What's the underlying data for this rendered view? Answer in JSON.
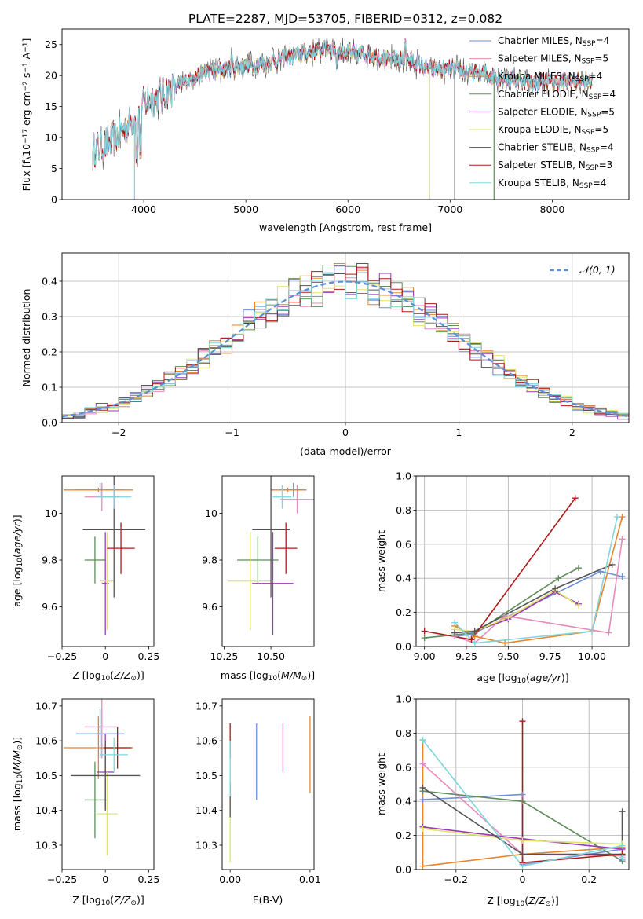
{
  "figure_title": "PLATE=2287, MJD=53705, FIBERID=0312, z=0.082",
  "colors": {
    "Chabrier MILES": "#6b8fd9",
    "Salpeter MILES": "#e48bbd",
    "Kroupa MILES": "#e8842a",
    "Chabrier ELODIE": "#5e8c5a",
    "Salpeter ELODIE": "#9a3ab8",
    "Kroupa ELODIE": "#dfe56b",
    "Chabrier STELIB": "#555555",
    "Salpeter STELIB": "#b01818",
    "Kroupa STELIB": "#7fd6dc",
    "normal": "#5b8ed6"
  },
  "chart_data": [
    {
      "id": "spectrum",
      "type": "line",
      "title": "PLATE=2287, MJD=53705, FIBERID=0312, z=0.082",
      "xlabel": "wavelength [Angstrom, rest frame]",
      "ylabel": "Flux [fλ10⁻¹⁷ erg cm⁻² s⁻¹ A⁻¹]",
      "xlim": [
        3200,
        8750
      ],
      "ylim": [
        0,
        27.5
      ],
      "xticks": [
        4000,
        5000,
        6000,
        7000,
        8000
      ],
      "yticks": [
        0,
        5,
        10,
        15,
        20,
        25
      ],
      "grid": false,
      "legend_position": "right",
      "series_styles": [
        "Chabrier MILES, N",
        "Salpeter MILES, N",
        "Kroupa MILES, N",
        "Chabrier ELODIE, N",
        "Salpeter ELODIE, N",
        "Kroupa ELODIE, N",
        "Chabrier STELIB, N",
        "Salpeter STELIB, N",
        "Kroupa STELIB, N"
      ],
      "legend": [
        {
          "base": "Chabrier MILES",
          "sub": "SSP",
          "suffix": "=4"
        },
        {
          "base": "Salpeter MILES",
          "sub": "SSP",
          "suffix": "=5"
        },
        {
          "base": "Kroupa MILES",
          "sub": "SSP",
          "suffix": "=4"
        },
        {
          "base": "Chabrier ELODIE",
          "sub": "SSP",
          "suffix": "=4"
        },
        {
          "base": "Salpeter ELODIE",
          "sub": "SSP",
          "suffix": "=5"
        },
        {
          "base": "Kroupa ELODIE",
          "sub": "SSP",
          "suffix": "=5"
        },
        {
          "base": "Chabrier STELIB",
          "sub": "SSP",
          "suffix": "=4"
        },
        {
          "base": "Salpeter STELIB",
          "sub": "SSP",
          "suffix": "=3"
        },
        {
          "base": "Kroupa STELIB",
          "sub": "SSP",
          "suffix": "=4"
        }
      ],
      "data_envelope": {
        "x": [
          3500,
          3700,
          3900,
          4000,
          4200,
          4400,
          4600,
          4800,
          5000,
          5200,
          5400,
          5600,
          5800,
          6000,
          6200,
          6400,
          6600,
          6800,
          7000,
          7200,
          7400,
          7600,
          7800,
          8000,
          8200,
          8400
        ],
        "y": [
          8.0,
          9.5,
          13.0,
          15.5,
          17.0,
          19.0,
          20.5,
          21.0,
          21.5,
          22.0,
          23.0,
          23.5,
          24.5,
          23.5,
          23.5,
          22.5,
          22.5,
          21.0,
          21.0,
          20.5,
          20.0,
          19.5,
          19.0,
          19.0,
          19.0,
          19.0
        ]
      }
    },
    {
      "id": "residuals",
      "type": "histogram",
      "xlabel": "(data-model)/error",
      "ylabel": "Normed distribution",
      "xlim": [
        -2.5,
        2.5
      ],
      "ylim": [
        0,
        0.48
      ],
      "xticks": [
        -2,
        -1,
        0,
        1,
        2
      ],
      "yticks": [
        0.0,
        0.1,
        0.2,
        0.3,
        0.4
      ],
      "grid": true,
      "legend_position": "upper right",
      "legend": [
        "𝒩(0, 1)"
      ],
      "bin_width": 0.1
    },
    {
      "id": "age_vs_Z",
      "type": "scatter",
      "xlabel": "Z [log₁₀(Z/Z⊙)]",
      "ylabel": "age  [log₁₀(age/yr)]",
      "xlim": [
        -0.25,
        0.28
      ],
      "ylim": [
        9.43,
        10.16
      ],
      "xticks": [
        -0.25,
        0.0,
        0.25
      ],
      "yticks": [
        9.6,
        9.8,
        10.0
      ],
      "points": [
        {
          "model": "Chabrier MILES",
          "x": -0.03,
          "xerr": 0.14,
          "y": 10.1,
          "yerr": 0.03
        },
        {
          "model": "Salpeter MILES",
          "x": -0.02,
          "xerr": 0.1,
          "y": 10.07,
          "yerr": 0.06
        },
        {
          "model": "Kroupa MILES",
          "x": -0.04,
          "xerr": 0.2,
          "y": 10.1,
          "yerr": 0.01
        },
        {
          "model": "Chabrier ELODIE",
          "x": -0.06,
          "xerr": 0.06,
          "y": 9.8,
          "yerr": 0.1
        },
        {
          "model": "Salpeter ELODIE",
          "x": 0.0,
          "xerr": 0.02,
          "y": 9.7,
          "yerr": 0.22
        },
        {
          "model": "Kroupa ELODIE",
          "x": 0.01,
          "xerr": 0.04,
          "y": 9.71,
          "yerr": 0.21
        },
        {
          "model": "Chabrier STELIB",
          "x": 0.05,
          "xerr": 0.18,
          "y": 9.93,
          "yerr": 0.29
        },
        {
          "model": "Salpeter STELIB",
          "x": 0.09,
          "xerr": 0.08,
          "y": 9.85,
          "yerr": 0.11
        },
        {
          "model": "Kroupa STELIB",
          "x": 0.05,
          "xerr": 0.1,
          "y": 10.07,
          "yerr": 0.05
        }
      ]
    },
    {
      "id": "age_vs_mass",
      "type": "scatter",
      "xlabel": "mass [log₁₀(M/M⊙)]",
      "ylabel": "",
      "xlim": [
        10.24,
        10.73
      ],
      "ylim": [
        9.43,
        10.16
      ],
      "xticks": [
        10.25,
        10.5
      ],
      "xtick_labels": [
        "10.25",
        "10.50"
      ],
      "yticks": [
        9.6,
        9.8,
        10.0
      ],
      "points": [
        {
          "model": "Chabrier MILES",
          "x": 10.62,
          "xerr": 0.07,
          "y": 10.1,
          "yerr": 0.03
        },
        {
          "model": "Salpeter MILES",
          "x": 10.64,
          "xerr": 0.09,
          "y": 10.06,
          "yerr": 0.06
        },
        {
          "model": "Kroupa MILES",
          "x": 10.59,
          "xerr": 0.09,
          "y": 10.1,
          "yerr": 0.01
        },
        {
          "model": "Chabrier ELODIE",
          "x": 10.43,
          "xerr": 0.11,
          "y": 9.8,
          "yerr": 0.1
        },
        {
          "model": "Salpeter ELODIE",
          "x": 10.51,
          "xerr": 0.11,
          "y": 9.7,
          "yerr": 0.22
        },
        {
          "model": "Kroupa ELODIE",
          "x": 10.39,
          "xerr": 0.12,
          "y": 9.71,
          "yerr": 0.21
        },
        {
          "model": "Chabrier STELIB",
          "x": 10.5,
          "xerr": 0.1,
          "y": 9.93,
          "yerr": 0.29
        },
        {
          "model": "Salpeter STELIB",
          "x": 10.58,
          "xerr": 0.06,
          "y": 9.85,
          "yerr": 0.11
        },
        {
          "model": "Kroupa STELIB",
          "x": 10.56,
          "xerr": 0.05,
          "y": 10.07,
          "yerr": 0.05
        }
      ]
    },
    {
      "id": "weights_vs_age",
      "type": "line",
      "xlabel": "age  [log₁₀(age/yr)]",
      "ylabel": "mass weight",
      "xlim": [
        8.95,
        10.22
      ],
      "ylim": [
        0,
        1
      ],
      "xticks": [
        9.0,
        9.25,
        9.5,
        9.75,
        10.0
      ],
      "xtick_labels": [
        "9.00",
        "9.25",
        "9.50",
        "9.75",
        "10.00"
      ],
      "yticks": [
        0.0,
        0.2,
        0.4,
        0.6,
        0.8,
        1.0
      ],
      "grid": true,
      "series": [
        {
          "model": "Chabrier MILES",
          "x": [
            9.18,
            9.28,
            10.05,
            10.18
          ],
          "y": [
            0.06,
            0.07,
            0.44,
            0.41
          ]
        },
        {
          "model": "Salpeter MILES",
          "x": [
            9.18,
            9.3,
            9.48,
            10.1,
            10.18
          ],
          "y": [
            0.06,
            0.02,
            0.18,
            0.08,
            0.63
          ]
        },
        {
          "model": "Kroupa MILES",
          "x": [
            9.18,
            9.3,
            9.48,
            10.0,
            10.18
          ],
          "y": [
            0.12,
            0.06,
            0.02,
            0.09,
            0.76
          ]
        },
        {
          "model": "Chabrier ELODIE",
          "x": [
            9.0,
            9.3,
            9.8,
            9.92
          ],
          "y": [
            0.05,
            0.08,
            0.4,
            0.46
          ]
        },
        {
          "model": "Salpeter ELODIE",
          "x": [
            9.18,
            9.3,
            9.5,
            9.78,
            9.92
          ],
          "y": [
            0.08,
            0.09,
            0.16,
            0.32,
            0.25
          ]
        },
        {
          "model": "Kroupa ELODIE",
          "x": [
            9.18,
            9.3,
            9.5,
            9.78,
            9.92
          ],
          "y": [
            0.1,
            0.09,
            0.17,
            0.33,
            0.24
          ]
        },
        {
          "model": "Chabrier STELIB",
          "x": [
            9.18,
            9.3,
            9.78,
            10.12
          ],
          "y": [
            0.08,
            0.09,
            0.34,
            0.48
          ]
        },
        {
          "model": "Salpeter STELIB",
          "x": [
            9.0,
            9.28,
            9.9
          ],
          "y": [
            0.09,
            0.04,
            0.87
          ]
        },
        {
          "model": "Kroupa STELIB",
          "x": [
            9.18,
            9.3,
            10.0,
            10.15
          ],
          "y": [
            0.14,
            0.02,
            0.09,
            0.76
          ]
        }
      ]
    },
    {
      "id": "mass_vs_Z",
      "type": "scatter",
      "xlabel": "Z [log₁₀(Z/Z⊙)]",
      "ylabel": "mass [log₁₀(M/M⊙)]",
      "xlim": [
        -0.25,
        0.28
      ],
      "ylim": [
        10.23,
        10.72
      ],
      "xticks": [
        -0.25,
        0.0,
        0.25
      ],
      "yticks": [
        10.3,
        10.4,
        10.5,
        10.6,
        10.7
      ],
      "points": [
        {
          "model": "Chabrier MILES",
          "x": -0.03,
          "xerr": 0.14,
          "y": 10.62,
          "yerr": 0.07
        },
        {
          "model": "Salpeter MILES",
          "x": -0.02,
          "xerr": 0.1,
          "y": 10.64,
          "yerr": 0.09
        },
        {
          "model": "Kroupa MILES",
          "x": -0.04,
          "xerr": 0.2,
          "y": 10.58,
          "yerr": 0.09
        },
        {
          "model": "Chabrier ELODIE",
          "x": -0.06,
          "xerr": 0.06,
          "y": 10.43,
          "yerr": 0.11
        },
        {
          "model": "Salpeter ELODIE",
          "x": 0.0,
          "xerr": 0.05,
          "y": 10.51,
          "yerr": 0.11
        },
        {
          "model": "Kroupa ELODIE",
          "x": 0.01,
          "xerr": 0.06,
          "y": 10.39,
          "yerr": 0.12
        },
        {
          "model": "Chabrier STELIB",
          "x": 0.0,
          "xerr": 0.2,
          "y": 10.5,
          "yerr": 0.1
        },
        {
          "model": "Salpeter STELIB",
          "x": 0.07,
          "xerr": 0.08,
          "y": 10.58,
          "yerr": 0.06
        },
        {
          "model": "Kroupa STELIB",
          "x": 0.05,
          "xerr": 0.08,
          "y": 10.56,
          "yerr": 0.05
        }
      ]
    },
    {
      "id": "mass_vs_ebv",
      "type": "scatter",
      "xlabel": "E(B-V)",
      "ylabel": "",
      "xlim": [
        -0.001,
        0.0105
      ],
      "ylim": [
        10.23,
        10.72
      ],
      "xticks": [
        0.0,
        0.01
      ],
      "xtick_labels": [
        "0.00",
        "0.01"
      ],
      "yticks": [
        10.3,
        10.4,
        10.5,
        10.6,
        10.7
      ],
      "points": [
        {
          "model": "Chabrier MILES",
          "x": 0.0033,
          "y": 10.54,
          "yerr": 0.11
        },
        {
          "model": "Salpeter MILES",
          "x": 0.0066,
          "y": 10.58,
          "yerr": 0.07
        },
        {
          "model": "Kroupa MILES",
          "x": 0.01,
          "y": 10.56,
          "yerr": 0.11
        },
        {
          "model": "Kroupa ELODIE",
          "x": 0.0,
          "y": 10.38,
          "yerr": 0.13
        },
        {
          "model": "Chabrier STELIB",
          "x": 0.0,
          "y": 10.43,
          "yerr": 0.05
        },
        {
          "model": "Salpeter STELIB",
          "x": 0.0,
          "y": 10.6,
          "yerr": 0.05
        },
        {
          "model": "Kroupa STELIB",
          "x": 0.0,
          "y": 10.52,
          "yerr": 0.08
        }
      ]
    },
    {
      "id": "weights_vs_Z",
      "type": "line",
      "xlabel": "Z [log₁₀(Z/Z⊙)]",
      "ylabel": "mass weight",
      "xlim": [
        -0.32,
        0.32
      ],
      "ylim": [
        0,
        1
      ],
      "xticks": [
        -0.2,
        0.0,
        0.2
      ],
      "yticks": [
        0.0,
        0.2,
        0.4,
        0.6,
        0.8,
        1.0
      ],
      "grid": true,
      "series": [
        {
          "model": "Chabrier MILES",
          "x": [
            -0.3,
            0.0,
            0.0,
            0.3,
            0.3
          ],
          "y": [
            0.41,
            0.44,
            0.03,
            0.12,
            0.06
          ]
        },
        {
          "model": "Salpeter MILES",
          "x": [
            -0.3,
            0.0,
            0.3,
            0.3
          ],
          "y": [
            0.62,
            0.09,
            0.08,
            0.11
          ]
        },
        {
          "model": "Kroupa MILES",
          "x": [
            -0.3,
            -0.3,
            0.0,
            0.3,
            0.3
          ],
          "y": [
            0.76,
            0.02,
            0.09,
            0.13,
            0.09
          ]
        },
        {
          "model": "Chabrier ELODIE",
          "x": [
            -0.3,
            0.0,
            0.3
          ],
          "y": [
            0.46,
            0.4,
            0.05
          ]
        },
        {
          "model": "Salpeter ELODIE",
          "x": [
            -0.3,
            0.0,
            0.3
          ],
          "y": [
            0.25,
            0.18,
            0.12
          ]
        },
        {
          "model": "Kroupa ELODIE",
          "x": [
            -0.3,
            0.0,
            0.3
          ],
          "y": [
            0.24,
            0.17,
            0.15
          ]
        },
        {
          "model": "Chabrier STELIB",
          "x": [
            -0.3,
            0.0,
            0.3,
            0.3
          ],
          "y": [
            0.48,
            0.09,
            0.09,
            0.34
          ]
        },
        {
          "model": "Salpeter STELIB",
          "x": [
            0.0,
            0.0,
            0.3
          ],
          "y": [
            0.87,
            0.04,
            0.09
          ]
        },
        {
          "model": "Kroupa STELIB",
          "x": [
            -0.3,
            0.0,
            0.3,
            0.3
          ],
          "y": [
            0.76,
            0.02,
            0.14,
            0.07
          ]
        }
      ]
    }
  ]
}
